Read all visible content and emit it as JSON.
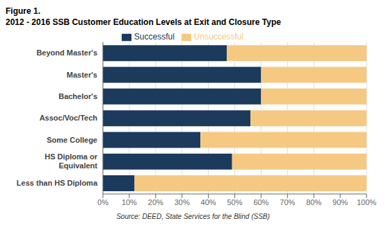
{
  "chart_data": {
    "type": "bar",
    "title": "Figure 1.",
    "subtitle": "2012 - 2016 SSB Customer Education Levels at Exit and Closure Type",
    "annotations": [
      "Source: DEED, State Services for the Blind (SSB)"
    ],
    "orientation": "horizontal",
    "stacked": true,
    "grid": true,
    "legend": "top",
    "categories": [
      "Beyond Master's",
      "Master's",
      "Bachelor's",
      "Assoc/Voc/Tech",
      "Some College",
      "HS Diploma or\nEquivalent",
      "Less than HS Diploma"
    ],
    "series": [
      {
        "name": "Successful",
        "color": "#1B3A5C",
        "values": [
          47,
          60,
          60,
          56,
          37,
          49,
          12
        ]
      },
      {
        "name": "Unsuccessful",
        "color": "#F5C982",
        "values": [
          53,
          40,
          40,
          44,
          63,
          51,
          88
        ]
      }
    ],
    "xlim": [
      0,
      100
    ],
    "xticks": [
      {
        "value": 0,
        "label": "0%"
      },
      {
        "value": 10,
        "label": "10%"
      },
      {
        "value": 20,
        "label": "20%"
      },
      {
        "value": 30,
        "label": "30%"
      },
      {
        "value": 40,
        "label": "40%"
      },
      {
        "value": 50,
        "label": "50%"
      },
      {
        "value": 60,
        "label": "60%"
      },
      {
        "value": 70,
        "label": "70%"
      },
      {
        "value": 80,
        "label": "80%"
      },
      {
        "value": 90,
        "label": "90%"
      },
      {
        "value": 100,
        "label": "100%"
      }
    ]
  }
}
